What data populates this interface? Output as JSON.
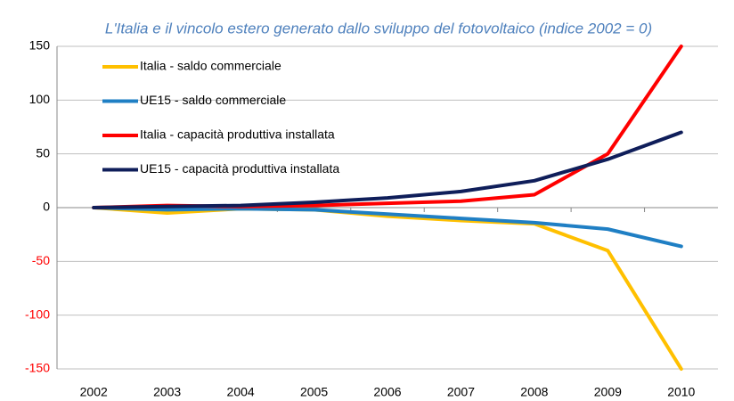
{
  "chart_data": {
    "type": "line",
    "title": "L'Italia e il vincolo estero generato dallo sviluppo del fotovoltaico (indice 2002 = 0)",
    "categories": [
      "2002",
      "2003",
      "2004",
      "2005",
      "2006",
      "2007",
      "2008",
      "2009",
      "2010"
    ],
    "series": [
      {
        "name": "Italia - saldo commerciale",
        "color": "#ffc000",
        "values": [
          0,
          -5,
          -1,
          -2,
          -8,
          -12,
          -15,
          -40,
          -150
        ]
      },
      {
        "name": "UE15 - saldo commerciale",
        "color": "#1f7fc4",
        "values": [
          0,
          -2,
          -1,
          -2,
          -6,
          -10,
          -14,
          -20,
          -36
        ]
      },
      {
        "name": "Italia - capacità produttiva installata",
        "color": "#ff0000",
        "values": [
          0,
          2,
          1,
          2,
          4,
          6,
          12,
          50,
          150
        ]
      },
      {
        "name": "UE15 - capacità produttiva installata",
        "color": "#0f1e5a",
        "values": [
          0,
          1,
          2,
          5,
          9,
          15,
          25,
          45,
          70
        ]
      }
    ],
    "ylim": [
      -150,
      150
    ],
    "yticks": [
      -150,
      -100,
      -50,
      0,
      50,
      100,
      150
    ],
    "grid": true,
    "negative_tick_color": "#ff0000",
    "legend": "upper left"
  }
}
